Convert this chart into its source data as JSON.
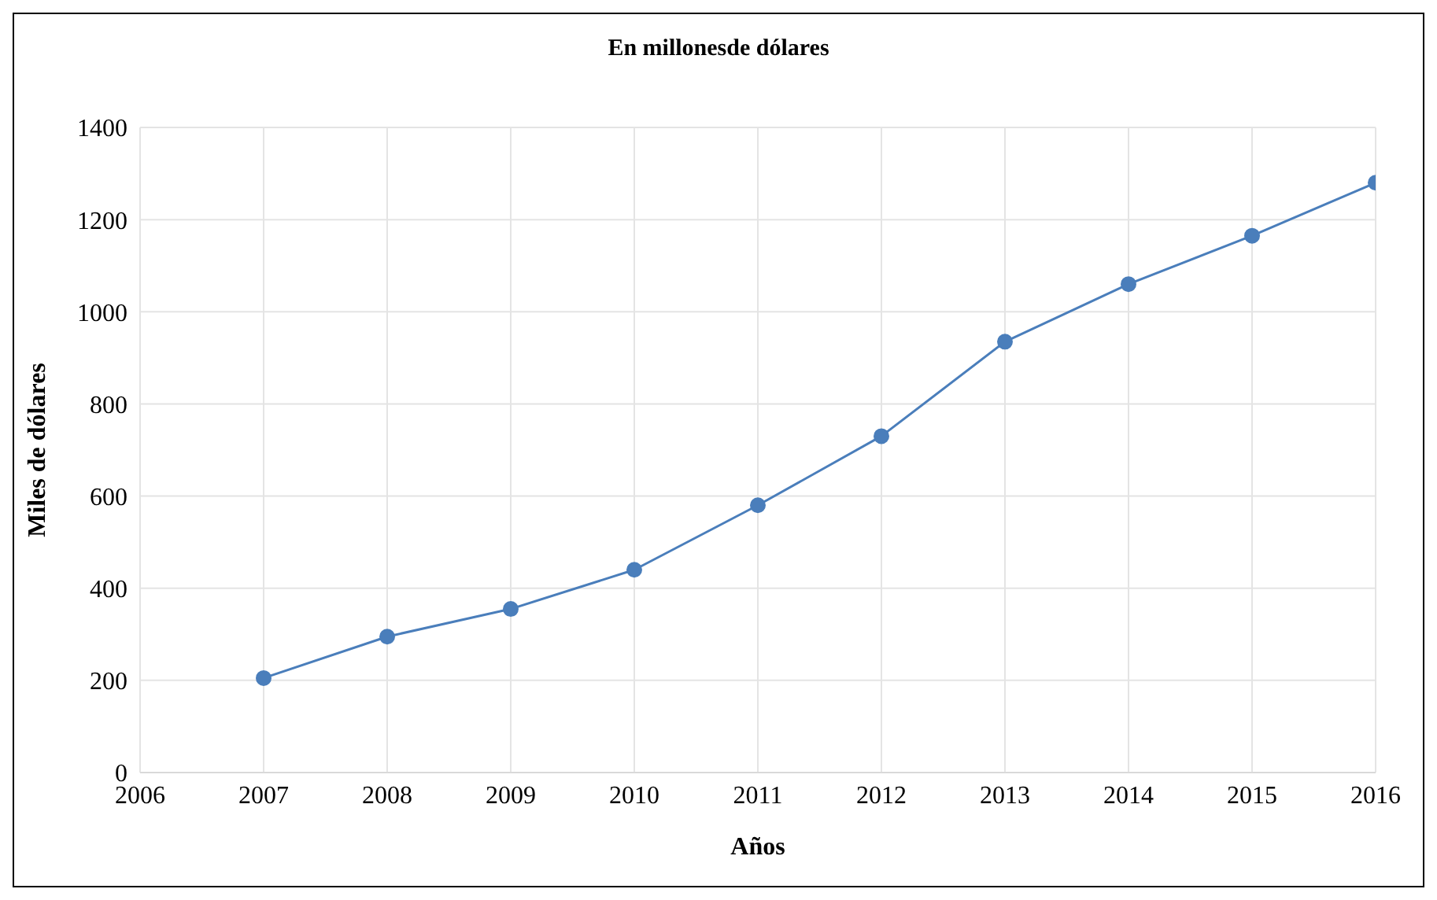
{
  "chart_data": {
    "type": "line",
    "title": "En millonesde dólares",
    "xlabel": "Años",
    "ylabel": "Miles de dólares",
    "x": [
      2007,
      2008,
      2009,
      2010,
      2011,
      2012,
      2013,
      2014,
      2015,
      2016
    ],
    "series": [
      {
        "color": "#4a7ebb",
        "values": [
          205,
          295,
          355,
          440,
          580,
          730,
          935,
          1060,
          1165,
          1280
        ]
      }
    ],
    "xlim": [
      2006,
      2016
    ],
    "xticks": [
      2006,
      2007,
      2008,
      2009,
      2010,
      2011,
      2012,
      2013,
      2014,
      2015,
      2016
    ],
    "ylim": [
      0,
      1400
    ],
    "yticks": [
      0,
      200,
      400,
      600,
      800,
      1000,
      1200,
      1400
    ],
    "grid": true,
    "marker": "circle",
    "line_style": "solid",
    "legend": false
  }
}
